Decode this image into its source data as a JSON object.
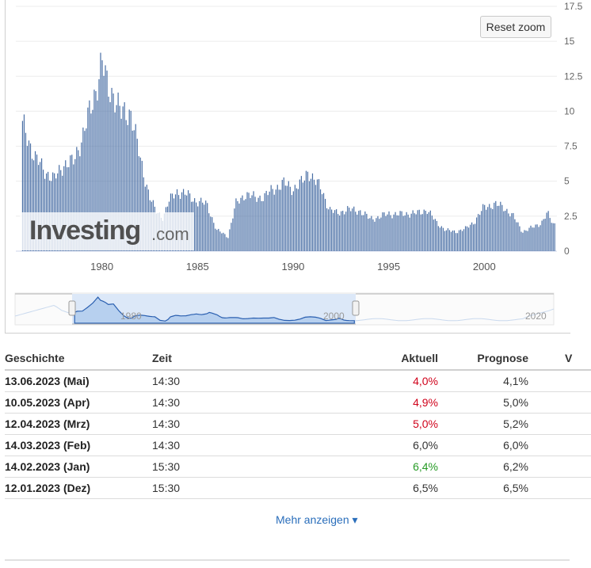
{
  "chart_data": {
    "type": "bar",
    "color": "#4a6fa5",
    "xaxis_ticks": [
      "1980",
      "1985",
      "1990",
      "1995",
      "2000"
    ],
    "yaxis_ticks": [
      "0",
      "2.5",
      "5",
      "7.5",
      "10",
      "12.5",
      "15",
      "17.5"
    ],
    "ylim": [
      0,
      17.5
    ],
    "grid": true,
    "x": [
      1975.9,
      1976.5,
      1977,
      1977.5,
      1978,
      1978.5,
      1979,
      1979.5,
      1980,
      1980.3,
      1980.6,
      1981,
      1981.5,
      1982,
      1982.5,
      1982.8,
      1983.2,
      1983.5,
      1983.9,
      1984.5,
      1985,
      1985.5,
      1986,
      1986.3,
      1986.6,
      1987,
      1987.5,
      1988,
      1988.5,
      1989,
      1989.5,
      1990,
      1990.5,
      1990.8,
      1991,
      1991.5,
      1991.9,
      1992.3,
      1992.8,
      1993.5,
      1994,
      1994.5,
      1995,
      1995.5,
      1996,
      1996.5,
      1997,
      1997.5,
      1998,
      1998.5,
      1999,
      1999.5,
      2000,
      2000.5,
      2001,
      2001.5,
      2002,
      2002.5,
      2003,
      2003.3,
      2003.6
    ],
    "values": [
      9.6,
      7.2,
      6.2,
      5.5,
      6.7,
      6.8,
      8.9,
      11.3,
      14.6,
      12.5,
      12.2,
      10.5,
      10.8,
      7.1,
      4.2,
      3.1,
      2.6,
      3.8,
      4.6,
      4.3,
      3.8,
      3.6,
      1.6,
      1.4,
      1.1,
      3.6,
      4.4,
      4.1,
      4.2,
      4.8,
      5.2,
      4.8,
      5.3,
      6.2,
      5.7,
      4.7,
      3.2,
      2.9,
      3.2,
      3.1,
      2.5,
      2.6,
      2.9,
      2.8,
      2.9,
      2.9,
      3.2,
      2.2,
      1.6,
      1.5,
      1.7,
      2.3,
      3.4,
      3.6,
      3.4,
      2.7,
      1.5,
      1.8,
      2.2,
      2.9,
      2.1
    ]
  },
  "chart_ui": {
    "reset_zoom_label": "Reset zoom",
    "watermark_brand": "Investing",
    "watermark_suffix": ".com",
    "navigator_ticks": [
      "1980",
      "2000",
      "2020"
    ]
  },
  "table": {
    "headers": [
      "Geschichte",
      "Zeit",
      "Aktuell",
      "Prognose",
      "V"
    ],
    "rows": [
      {
        "date": "13.06.2023 (Mai)",
        "time": "14:30",
        "actual": "4,0%",
        "forecast": "4,1%",
        "trend": "neg"
      },
      {
        "date": "10.05.2023 (Apr)",
        "time": "14:30",
        "actual": "4,9%",
        "forecast": "5,0%",
        "trend": "neg"
      },
      {
        "date": "12.04.2023 (Mrz)",
        "time": "14:30",
        "actual": "5,0%",
        "forecast": "5,2%",
        "trend": "neg"
      },
      {
        "date": "14.03.2023 (Feb)",
        "time": "14:30",
        "actual": "6,0%",
        "forecast": "6,0%",
        "trend": "neu"
      },
      {
        "date": "14.02.2023 (Jan)",
        "time": "15:30",
        "actual": "6,4%",
        "forecast": "6,2%",
        "trend": "pos"
      },
      {
        "date": "12.01.2023 (Dez)",
        "time": "15:30",
        "actual": "6,5%",
        "forecast": "6,5%",
        "trend": "neu"
      }
    ]
  },
  "more_label": "Mehr anzeigen ▾"
}
